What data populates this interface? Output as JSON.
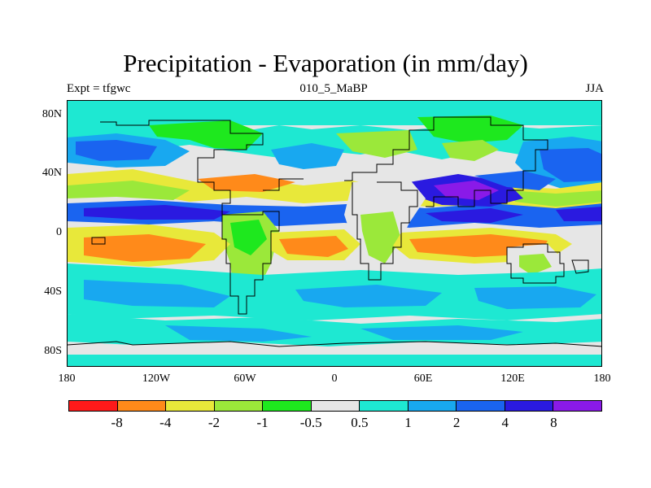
{
  "title": "Precipitation - Evaporation (in mm/day)",
  "header": {
    "left": "Expt = tfgwc",
    "center": "010_5_MaBP",
    "right": "JJA"
  },
  "axes": {
    "y_ticks": [
      "80N",
      "40N",
      "0",
      "40S",
      "80S"
    ],
    "x_ticks": [
      "180",
      "120W",
      "60W",
      "0",
      "60E",
      "120E",
      "180"
    ]
  },
  "colorbar": {
    "colors": [
      "#ff1a1a",
      "#ff8a1a",
      "#e8e83a",
      "#9be83a",
      "#1ee81e",
      "#e6e6e6",
      "#1ee8d2",
      "#18a8f0",
      "#1a64f0",
      "#2a1ae0",
      "#8a1ae8"
    ],
    "labels": [
      "-8",
      "-4",
      "-2",
      "-1",
      "-0.5",
      "0.5",
      "1",
      "2",
      "4",
      "8"
    ]
  },
  "map": {
    "projection": "cylindrical equidistant",
    "lon_range": [
      -180,
      180
    ],
    "lat_range": [
      -90,
      90
    ]
  }
}
